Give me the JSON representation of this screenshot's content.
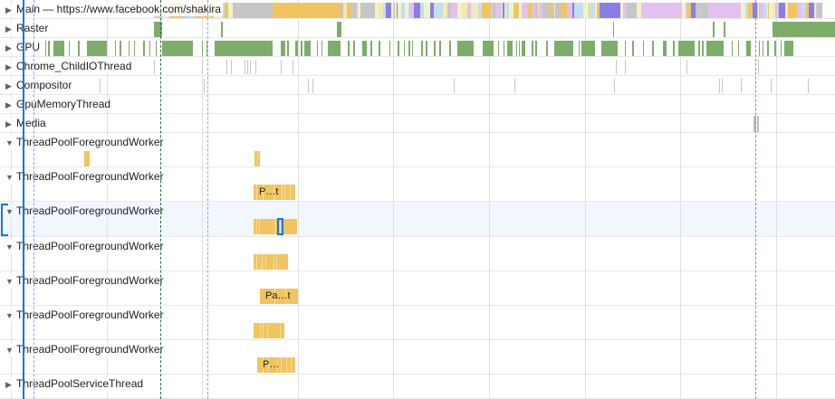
{
  "tracks": [
    {
      "label": "Main — https://www.facebook.com/shakira",
      "expanded": false
    },
    {
      "label": "Raster",
      "expanded": false
    },
    {
      "label": "GPU",
      "expanded": false
    },
    {
      "label": "Chrome_ChildIOThread",
      "expanded": false
    },
    {
      "label": "Compositor",
      "expanded": false
    },
    {
      "label": "GpuMemoryThread",
      "expanded": false
    },
    {
      "label": "Media",
      "expanded": false
    },
    {
      "label": "ThreadPoolForegroundWorker",
      "expanded": true
    },
    {
      "label": "ThreadPoolForegroundWorker",
      "expanded": true,
      "event_label": "P…t"
    },
    {
      "label": "ThreadPoolForegroundWorker",
      "expanded": true,
      "selected": true
    },
    {
      "label": "ThreadPoolForegroundWorker",
      "expanded": true
    },
    {
      "label": "ThreadPoolForegroundWorker",
      "expanded": true,
      "event_label": "Pa…t"
    },
    {
      "label": "ThreadPoolForegroundWorker",
      "expanded": true
    },
    {
      "label": "ThreadPoolForegroundWorker",
      "expanded": true,
      "event_label": "P…"
    },
    {
      "label": "ThreadPoolServiceThread",
      "expanded": false
    }
  ],
  "icons": {
    "collapsed": "triangle-right-icon",
    "expanded": "triangle-down-icon"
  },
  "colors": {
    "selection": "#1a73e8",
    "gpu": "#7dad6b",
    "task": "#f0c560",
    "idle_gray": "#c6c6c6",
    "main_palette": [
      "#c6c6c6",
      "#f0c560",
      "#eef5c4",
      "#e2c1ef",
      "#8a7de6",
      "#f5e8b0",
      "#c6dcef"
    ],
    "marker_red": "#e06c63",
    "marker_green": "#2f6b3c",
    "marker_blue": "#7baee8"
  }
}
